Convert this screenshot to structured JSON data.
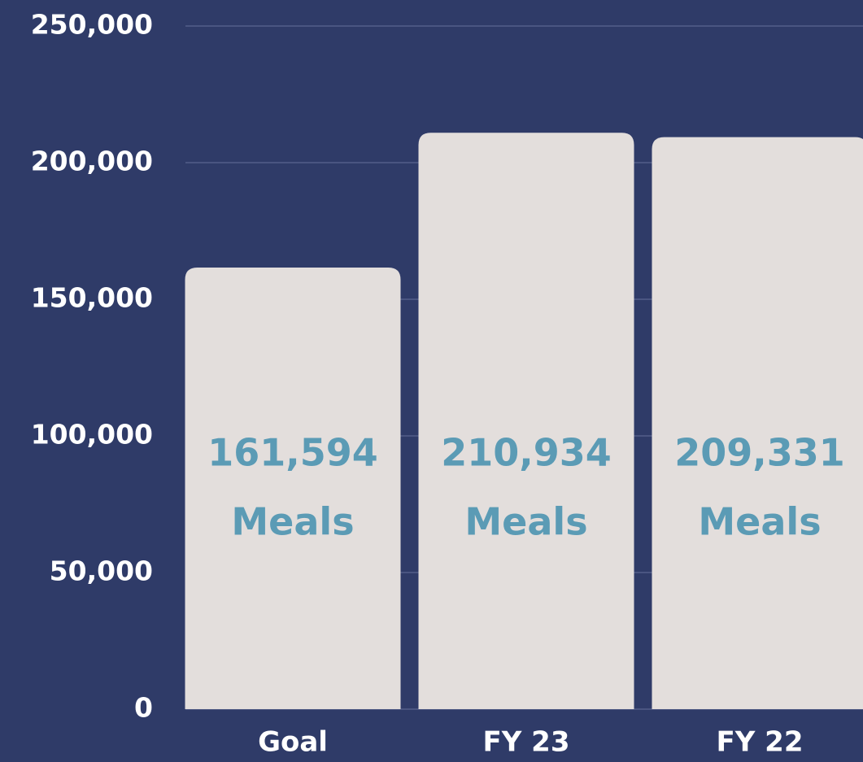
{
  "chart_data": {
    "type": "bar",
    "categories": [
      "Goal",
      "FY 23",
      "FY 22"
    ],
    "values": [
      161594,
      210934,
      209331
    ],
    "value_labels": [
      "161,594",
      "210,934",
      "209,331"
    ],
    "value_unit": "Meals",
    "color": "#e3dedc",
    "ylim": [
      0,
      250000
    ],
    "yticks": [
      0,
      {
        "value": 50000,
        "label": "50,000"
      },
      {
        "value": 100000,
        "label": "100,000"
      },
      {
        "value": 150000,
        "label": "150,000"
      },
      {
        "value": 200000,
        "label": "200,000"
      },
      {
        "value": 250000,
        "label": "250,000"
      }
    ],
    "grid": true
  }
}
